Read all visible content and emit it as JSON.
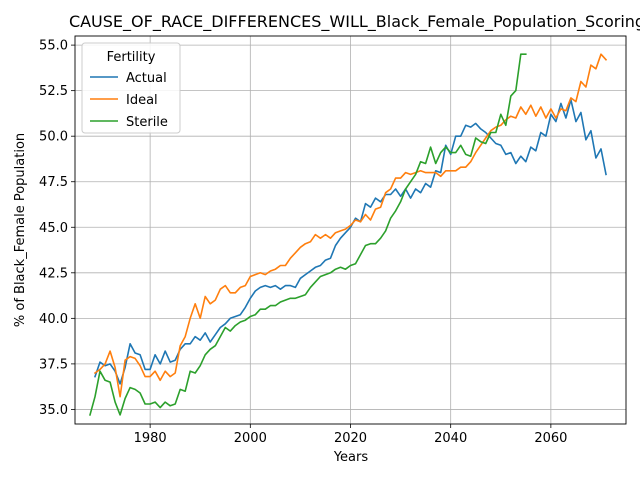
{
  "chart_data": {
    "type": "line",
    "title": "CAUSE_OF_RACE_DIFFERENCES_WILL_Black_Female_Population_Scoring",
    "xlabel": "Years",
    "ylabel": "% of Black_Female Population",
    "xlim": [
      1965,
      2075
    ],
    "ylim": [
      34.2,
      55.5
    ],
    "x_ticks": [
      1980,
      2000,
      2020,
      2040,
      2060
    ],
    "y_ticks": [
      35.0,
      37.5,
      40.0,
      42.5,
      45.0,
      47.5,
      50.0,
      52.5,
      55.0
    ],
    "x_tick_labels": [
      "1980",
      "2000",
      "2020",
      "2040",
      "2060"
    ],
    "y_tick_labels": [
      "35.0",
      "37.5",
      "40.0",
      "42.5",
      "45.0",
      "47.5",
      "50.0",
      "52.5",
      "55.0"
    ],
    "grid": true,
    "legend": {
      "title": "Fertility",
      "placement": "top-left"
    },
    "series": [
      {
        "name": "Actual",
        "color": "#1f77b4",
        "points": [
          [
            1969,
            36.8
          ],
          [
            1970,
            37.6
          ],
          [
            1971,
            37.4
          ],
          [
            1972,
            37.5
          ],
          [
            1973,
            37.1
          ],
          [
            1974,
            36.4
          ],
          [
            1975,
            37.3
          ],
          [
            1976,
            38.6
          ],
          [
            1977,
            38.1
          ],
          [
            1978,
            38.0
          ],
          [
            1979,
            37.2
          ],
          [
            1980,
            37.2
          ],
          [
            1981,
            38.0
          ],
          [
            1982,
            37.5
          ],
          [
            1983,
            38.2
          ],
          [
            1984,
            37.6
          ],
          [
            1985,
            37.7
          ],
          [
            1986,
            38.3
          ],
          [
            1987,
            38.6
          ],
          [
            1988,
            38.6
          ],
          [
            1989,
            39.0
          ],
          [
            1990,
            38.8
          ],
          [
            1991,
            39.2
          ],
          [
            1992,
            38.7
          ],
          [
            1993,
            39.1
          ],
          [
            1994,
            39.5
          ],
          [
            1995,
            39.7
          ],
          [
            1996,
            40.0
          ],
          [
            1997,
            40.1
          ],
          [
            1998,
            40.2
          ],
          [
            1999,
            40.6
          ],
          [
            2000,
            41.1
          ],
          [
            2001,
            41.5
          ],
          [
            2002,
            41.7
          ],
          [
            2003,
            41.8
          ],
          [
            2004,
            41.7
          ],
          [
            2005,
            41.8
          ],
          [
            2006,
            41.6
          ],
          [
            2007,
            41.8
          ],
          [
            2008,
            41.8
          ],
          [
            2009,
            41.7
          ],
          [
            2010,
            42.2
          ],
          [
            2011,
            42.4
          ],
          [
            2012,
            42.6
          ],
          [
            2013,
            42.8
          ],
          [
            2014,
            42.9
          ],
          [
            2015,
            43.2
          ],
          [
            2016,
            43.3
          ],
          [
            2017,
            44.0
          ],
          [
            2018,
            44.4
          ],
          [
            2019,
            44.7
          ],
          [
            2020,
            45.0
          ],
          [
            2021,
            45.5
          ],
          [
            2022,
            45.3
          ],
          [
            2023,
            46.3
          ],
          [
            2024,
            46.1
          ],
          [
            2025,
            46.6
          ],
          [
            2026,
            46.4
          ],
          [
            2027,
            46.8
          ],
          [
            2028,
            46.8
          ],
          [
            2029,
            47.1
          ],
          [
            2030,
            46.7
          ],
          [
            2031,
            47.1
          ],
          [
            2032,
            46.6
          ],
          [
            2033,
            47.1
          ],
          [
            2034,
            46.9
          ],
          [
            2035,
            47.4
          ],
          [
            2036,
            47.2
          ],
          [
            2037,
            48.1
          ],
          [
            2038,
            48.0
          ],
          [
            2039,
            49.5
          ],
          [
            2040,
            49.0
          ],
          [
            2041,
            50.0
          ],
          [
            2042,
            50.0
          ],
          [
            2043,
            50.6
          ],
          [
            2044,
            50.5
          ],
          [
            2045,
            50.7
          ],
          [
            2046,
            50.4
          ],
          [
            2047,
            50.2
          ],
          [
            2048,
            49.9
          ],
          [
            2049,
            49.6
          ],
          [
            2050,
            49.5
          ],
          [
            2051,
            49.0
          ],
          [
            2052,
            49.1
          ],
          [
            2053,
            48.5
          ],
          [
            2054,
            48.9
          ],
          [
            2055,
            48.6
          ],
          [
            2056,
            49.4
          ],
          [
            2057,
            49.2
          ],
          [
            2058,
            50.2
          ],
          [
            2059,
            50.0
          ],
          [
            2060,
            51.2
          ],
          [
            2061,
            50.8
          ],
          [
            2062,
            51.8
          ],
          [
            2063,
            51.0
          ],
          [
            2064,
            52.0
          ],
          [
            2065,
            50.8
          ],
          [
            2066,
            51.3
          ],
          [
            2067,
            49.8
          ],
          [
            2068,
            50.3
          ],
          [
            2069,
            48.8
          ],
          [
            2070,
            49.3
          ],
          [
            2071,
            47.9
          ]
        ]
      },
      {
        "name": "Ideal",
        "color": "#ff7f0e",
        "points": [
          [
            1969,
            37.0
          ],
          [
            1970,
            37.2
          ],
          [
            1971,
            37.5
          ],
          [
            1972,
            38.2
          ],
          [
            1973,
            37.3
          ],
          [
            1974,
            35.7
          ],
          [
            1975,
            37.7
          ],
          [
            1976,
            37.9
          ],
          [
            1977,
            37.8
          ],
          [
            1978,
            37.4
          ],
          [
            1979,
            36.8
          ],
          [
            1980,
            36.8
          ],
          [
            1981,
            37.1
          ],
          [
            1982,
            36.6
          ],
          [
            1983,
            37.1
          ],
          [
            1984,
            36.8
          ],
          [
            1985,
            37.0
          ],
          [
            1986,
            38.5
          ],
          [
            1987,
            39.0
          ],
          [
            1988,
            40.0
          ],
          [
            1989,
            40.8
          ],
          [
            1990,
            40.0
          ],
          [
            1991,
            41.2
          ],
          [
            1992,
            40.8
          ],
          [
            1993,
            41.0
          ],
          [
            1994,
            41.6
          ],
          [
            1995,
            41.8
          ],
          [
            1996,
            41.4
          ],
          [
            1997,
            41.4
          ],
          [
            1998,
            41.7
          ],
          [
            1999,
            41.8
          ],
          [
            2000,
            42.3
          ],
          [
            2001,
            42.4
          ],
          [
            2002,
            42.5
          ],
          [
            2003,
            42.4
          ],
          [
            2004,
            42.6
          ],
          [
            2005,
            42.7
          ],
          [
            2006,
            42.9
          ],
          [
            2007,
            42.9
          ],
          [
            2008,
            43.3
          ],
          [
            2009,
            43.6
          ],
          [
            2010,
            43.9
          ],
          [
            2011,
            44.1
          ],
          [
            2012,
            44.2
          ],
          [
            2013,
            44.6
          ],
          [
            2014,
            44.4
          ],
          [
            2015,
            44.6
          ],
          [
            2016,
            44.4
          ],
          [
            2017,
            44.7
          ],
          [
            2018,
            44.8
          ],
          [
            2019,
            44.9
          ],
          [
            2020,
            45.1
          ],
          [
            2021,
            45.4
          ],
          [
            2022,
            45.3
          ],
          [
            2023,
            45.7
          ],
          [
            2024,
            45.4
          ],
          [
            2025,
            46.0
          ],
          [
            2026,
            46.1
          ],
          [
            2027,
            46.9
          ],
          [
            2028,
            47.1
          ],
          [
            2029,
            47.7
          ],
          [
            2030,
            47.7
          ],
          [
            2031,
            48.0
          ],
          [
            2032,
            47.9
          ],
          [
            2033,
            48.0
          ],
          [
            2034,
            48.1
          ],
          [
            2035,
            48.0
          ],
          [
            2036,
            48.0
          ],
          [
            2037,
            48.0
          ],
          [
            2038,
            47.8
          ],
          [
            2039,
            48.1
          ],
          [
            2040,
            48.1
          ],
          [
            2041,
            48.1
          ],
          [
            2042,
            48.3
          ],
          [
            2043,
            48.3
          ],
          [
            2044,
            48.6
          ],
          [
            2045,
            49.1
          ],
          [
            2046,
            49.5
          ],
          [
            2047,
            49.9
          ],
          [
            2048,
            50.3
          ],
          [
            2049,
            50.5
          ],
          [
            2050,
            50.6
          ],
          [
            2051,
            50.9
          ],
          [
            2052,
            51.1
          ],
          [
            2053,
            51.0
          ],
          [
            2054,
            51.6
          ],
          [
            2055,
            51.2
          ],
          [
            2056,
            51.7
          ],
          [
            2057,
            51.1
          ],
          [
            2058,
            51.6
          ],
          [
            2059,
            51.0
          ],
          [
            2060,
            51.5
          ],
          [
            2061,
            51.0
          ],
          [
            2062,
            51.5
          ],
          [
            2063,
            51.4
          ],
          [
            2064,
            52.1
          ],
          [
            2065,
            51.9
          ],
          [
            2066,
            53.0
          ],
          [
            2067,
            52.7
          ],
          [
            2068,
            53.9
          ],
          [
            2069,
            53.7
          ],
          [
            2070,
            54.5
          ],
          [
            2071,
            54.2
          ]
        ]
      },
      {
        "name": "Sterile",
        "color": "#2ca02c",
        "points": [
          [
            1968,
            34.7
          ],
          [
            1969,
            35.7
          ],
          [
            1970,
            37.1
          ],
          [
            1971,
            36.6
          ],
          [
            1972,
            36.5
          ],
          [
            1973,
            35.4
          ],
          [
            1974,
            34.7
          ],
          [
            1975,
            35.6
          ],
          [
            1976,
            36.2
          ],
          [
            1977,
            36.1
          ],
          [
            1978,
            35.9
          ],
          [
            1979,
            35.3
          ],
          [
            1980,
            35.3
          ],
          [
            1981,
            35.4
          ],
          [
            1982,
            35.1
          ],
          [
            1983,
            35.4
          ],
          [
            1984,
            35.2
          ],
          [
            1985,
            35.3
          ],
          [
            1986,
            36.1
          ],
          [
            1987,
            36.0
          ],
          [
            1988,
            37.1
          ],
          [
            1989,
            37.0
          ],
          [
            1990,
            37.4
          ],
          [
            1991,
            38.0
          ],
          [
            1992,
            38.3
          ],
          [
            1993,
            38.5
          ],
          [
            1994,
            39.0
          ],
          [
            1995,
            39.5
          ],
          [
            1996,
            39.3
          ],
          [
            1997,
            39.6
          ],
          [
            1998,
            39.8
          ],
          [
            1999,
            39.9
          ],
          [
            2000,
            40.1
          ],
          [
            2001,
            40.2
          ],
          [
            2002,
            40.5
          ],
          [
            2003,
            40.5
          ],
          [
            2004,
            40.7
          ],
          [
            2005,
            40.7
          ],
          [
            2006,
            40.9
          ],
          [
            2007,
            41.0
          ],
          [
            2008,
            41.1
          ],
          [
            2009,
            41.1
          ],
          [
            2010,
            41.2
          ],
          [
            2011,
            41.3
          ],
          [
            2012,
            41.7
          ],
          [
            2013,
            42.0
          ],
          [
            2014,
            42.3
          ],
          [
            2015,
            42.4
          ],
          [
            2016,
            42.5
          ],
          [
            2017,
            42.7
          ],
          [
            2018,
            42.8
          ],
          [
            2019,
            42.7
          ],
          [
            2020,
            42.9
          ],
          [
            2021,
            43.0
          ],
          [
            2022,
            43.5
          ],
          [
            2023,
            44.0
          ],
          [
            2024,
            44.1
          ],
          [
            2025,
            44.1
          ],
          [
            2026,
            44.4
          ],
          [
            2027,
            44.8
          ],
          [
            2028,
            45.5
          ],
          [
            2029,
            45.9
          ],
          [
            2030,
            46.4
          ],
          [
            2031,
            47.1
          ],
          [
            2032,
            47.5
          ],
          [
            2033,
            47.9
          ],
          [
            2034,
            48.6
          ],
          [
            2035,
            48.5
          ],
          [
            2036,
            49.4
          ],
          [
            2037,
            48.5
          ],
          [
            2038,
            49.1
          ],
          [
            2039,
            49.4
          ],
          [
            2040,
            49.1
          ],
          [
            2041,
            49.1
          ],
          [
            2042,
            49.5
          ],
          [
            2043,
            49.0
          ],
          [
            2044,
            48.9
          ],
          [
            2045,
            49.9
          ],
          [
            2046,
            49.7
          ],
          [
            2047,
            49.6
          ],
          [
            2048,
            50.2
          ],
          [
            2049,
            50.2
          ],
          [
            2050,
            51.2
          ],
          [
            2051,
            50.6
          ],
          [
            2052,
            52.2
          ],
          [
            2053,
            52.5
          ],
          [
            2054,
            54.5
          ],
          [
            2055,
            54.5
          ]
        ]
      }
    ]
  }
}
